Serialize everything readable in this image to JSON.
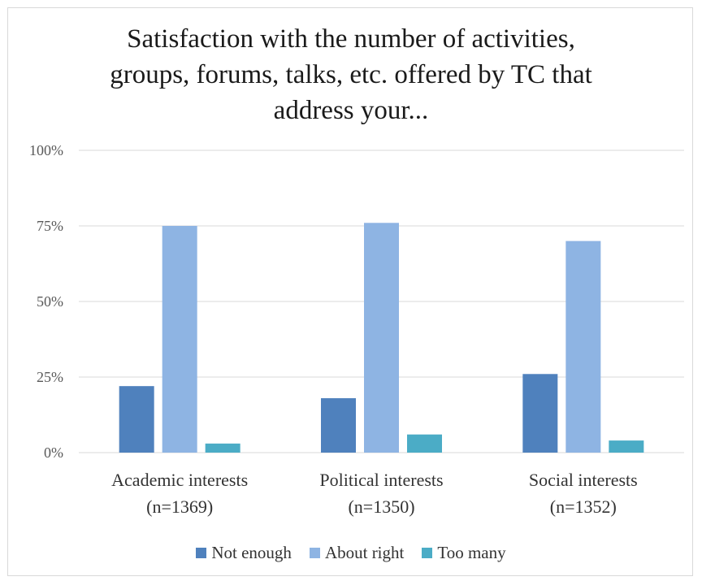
{
  "chart_data": {
    "type": "bar",
    "title": "Satisfaction with the number of  activities,\ngroups, forums, talks, etc. offered by TC that\naddress your...",
    "categories": [
      [
        "Academic interests",
        "(n=1369)"
      ],
      [
        "Political interests",
        "(n=1350)"
      ],
      [
        "Social interests",
        "(n=1352)"
      ]
    ],
    "series": [
      {
        "name": "Not enough",
        "color": "#4f81bd",
        "values": [
          22,
          18,
          26
        ]
      },
      {
        "name": "About right",
        "color": "#8eb4e3",
        "values": [
          75,
          76,
          70
        ]
      },
      {
        "name": "Too many",
        "color": "#4bacc6",
        "values": [
          3,
          6,
          4
        ]
      }
    ],
    "y_ticks": [
      "0%",
      "25%",
      "50%",
      "75%",
      "100%"
    ],
    "ylim": [
      0,
      100
    ],
    "grid": true,
    "legend_position": "bottom"
  }
}
